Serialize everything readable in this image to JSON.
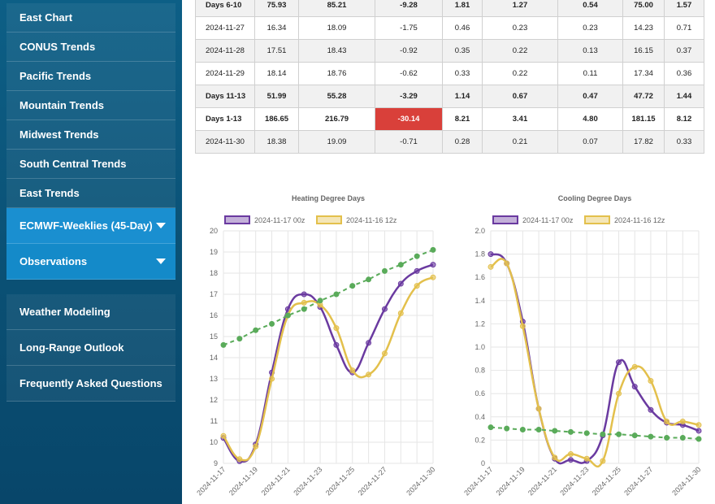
{
  "sidebar": {
    "items": [
      {
        "label": "East Chart"
      },
      {
        "label": "CONUS Trends"
      },
      {
        "label": "Pacific Trends"
      },
      {
        "label": "Mountain Trends"
      },
      {
        "label": "Midwest Trends"
      },
      {
        "label": "South Central Trends"
      },
      {
        "label": "East Trends"
      },
      {
        "label": "ECMWF-Weeklies (45-Day)"
      },
      {
        "label": "Observations"
      }
    ],
    "items2": [
      {
        "label": "Weather Modeling"
      },
      {
        "label": "Long-Range Outlook"
      },
      {
        "label": "Frequently Asked Questions"
      }
    ]
  },
  "table": {
    "rows": [
      {
        "cells": [
          "Days 6-10",
          "75.93",
          "85.21",
          "-9.28",
          "1.81",
          "1.27",
          "0.54",
          "75.00",
          "1.57"
        ],
        "bold": true,
        "shade": true
      },
      {
        "cells": [
          "2024-11-27",
          "16.34",
          "18.09",
          "-1.75",
          "0.46",
          "0.23",
          "0.23",
          "14.23",
          "0.71"
        ],
        "bold": false,
        "shade": false
      },
      {
        "cells": [
          "2024-11-28",
          "17.51",
          "18.43",
          "-0.92",
          "0.35",
          "0.22",
          "0.13",
          "16.15",
          "0.37"
        ],
        "bold": false,
        "shade": true
      },
      {
        "cells": [
          "2024-11-29",
          "18.14",
          "18.76",
          "-0.62",
          "0.33",
          "0.22",
          "0.11",
          "17.34",
          "0.36"
        ],
        "bold": false,
        "shade": false
      },
      {
        "cells": [
          "Days 11-13",
          "51.99",
          "55.28",
          "-3.29",
          "1.14",
          "0.67",
          "0.47",
          "47.72",
          "1.44"
        ],
        "bold": true,
        "shade": true
      },
      {
        "cells": [
          "Days 1-13",
          "186.65",
          "216.79",
          "-30.14",
          "8.21",
          "3.41",
          "4.80",
          "181.15",
          "8.12"
        ],
        "bold": true,
        "shade": false,
        "neg_index": 3
      },
      {
        "cells": [
          "2024-11-30",
          "18.38",
          "19.09",
          "-0.71",
          "0.28",
          "0.21",
          "0.07",
          "17.82",
          "0.33"
        ],
        "bold": false,
        "shade": true
      }
    ]
  },
  "chart_data": [
    {
      "type": "line",
      "title": "Heating Degree Days",
      "x": [
        "2024-11-17",
        "2024-11-18",
        "2024-11-19",
        "2024-11-20",
        "2024-11-21",
        "2024-11-22",
        "2024-11-23",
        "2024-11-24",
        "2024-11-25",
        "2024-11-26",
        "2024-11-27",
        "2024-11-28",
        "2024-11-29",
        "2024-11-30"
      ],
      "xticks": [
        "2024-11-17",
        "2024-11-19",
        "2024-11-21",
        "2024-11-23",
        "2024-11-25",
        "2024-11-27",
        "2024-11-30"
      ],
      "ylim": [
        9,
        20
      ],
      "yticks": [
        "9",
        "10",
        "11",
        "12",
        "13",
        "14",
        "15",
        "16",
        "17",
        "18",
        "19",
        "20"
      ],
      "series": [
        {
          "name": "2024-11-17 00z",
          "color": "#6a3aa0",
          "values": [
            10.2,
            9.1,
            9.9,
            13.3,
            16.3,
            17.0,
            16.4,
            14.6,
            13.3,
            14.7,
            16.3,
            17.5,
            18.1,
            18.4
          ]
        },
        {
          "name": "2024-11-16 12z",
          "color": "#e3c04c",
          "values": [
            10.3,
            9.2,
            9.8,
            13.0,
            16.0,
            16.6,
            16.5,
            15.4,
            13.4,
            13.2,
            14.2,
            16.1,
            17.4,
            17.8
          ]
        },
        {
          "name": "",
          "color": "#5aab5a",
          "dashed": true,
          "values": [
            14.6,
            14.9,
            15.3,
            15.6,
            16.0,
            16.3,
            16.7,
            17.0,
            17.4,
            17.7,
            18.1,
            18.4,
            18.8,
            19.1
          ]
        }
      ]
    },
    {
      "type": "line",
      "title": "Cooling Degree Days",
      "x": [
        "2024-11-17",
        "2024-11-18",
        "2024-11-19",
        "2024-11-20",
        "2024-11-21",
        "2024-11-22",
        "2024-11-23",
        "2024-11-24",
        "2024-11-25",
        "2024-11-26",
        "2024-11-27",
        "2024-11-28",
        "2024-11-29",
        "2024-11-30"
      ],
      "xticks": [
        "2024-11-17",
        "2024-11-19",
        "2024-11-21",
        "2024-11-23",
        "2024-11-25",
        "2024-11-27",
        "2024-11-30"
      ],
      "ylim": [
        0,
        2.0
      ],
      "yticks": [
        "0",
        "0.2",
        "0.4",
        "0.6",
        "0.8",
        "1.0",
        "1.2",
        "1.4",
        "1.6",
        "1.8",
        "2.0"
      ],
      "series": [
        {
          "name": "2024-11-17 00z",
          "color": "#6a3aa0",
          "values": [
            1.8,
            1.72,
            1.22,
            0.47,
            0.04,
            0.03,
            0.02,
            0.24,
            0.87,
            0.66,
            0.46,
            0.35,
            0.33,
            0.28
          ]
        },
        {
          "name": "2024-11-16 12z",
          "color": "#e3c04c",
          "values": [
            1.69,
            1.72,
            1.18,
            0.47,
            0.05,
            0.08,
            0.04,
            0.02,
            0.6,
            0.83,
            0.71,
            0.36,
            0.36,
            0.33
          ]
        },
        {
          "name": "",
          "color": "#5aab5a",
          "dashed": true,
          "values": [
            0.31,
            0.3,
            0.29,
            0.29,
            0.28,
            0.27,
            0.26,
            0.25,
            0.25,
            0.24,
            0.23,
            0.22,
            0.22,
            0.21
          ]
        }
      ]
    }
  ]
}
